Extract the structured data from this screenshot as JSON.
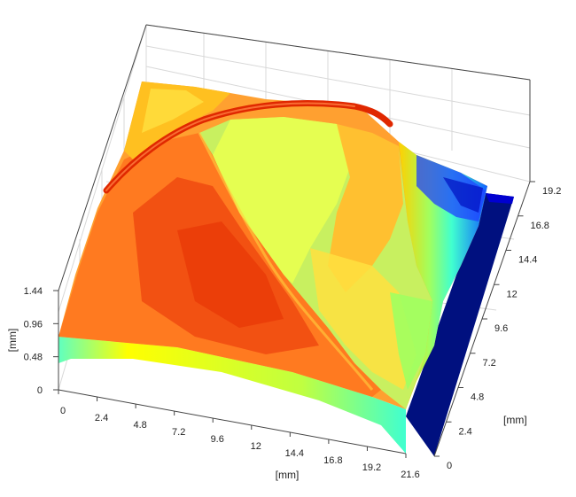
{
  "chart_data": {
    "type": "surface",
    "title": "",
    "xlabel": "[mm]",
    "ylabel": "[mm]",
    "zlabel": "[mm]",
    "xlim": [
      0,
      21.6
    ],
    "ylim": [
      0,
      19.2
    ],
    "zlim": [
      0,
      1.44
    ],
    "x_ticks": [
      "0",
      "2.4",
      "4.8",
      "7.2",
      "9.6",
      "12",
      "14.4",
      "16.8",
      "19.2",
      "21.6"
    ],
    "y_ticks": [
      "0",
      "2.4",
      "4.8",
      "7.2",
      "9.6",
      "12",
      "14.4",
      "16.8",
      "19.2"
    ],
    "z_ticks": [
      "0",
      "0.48",
      "0.96",
      "1.44"
    ],
    "grid": true,
    "colormap": [
      "#00007f",
      "#0000ff",
      "#00a0ff",
      "#40ffd0",
      "#a0ff60",
      "#ffff00",
      "#ffc000",
      "#ff6000",
      "#e02000"
    ]
  }
}
